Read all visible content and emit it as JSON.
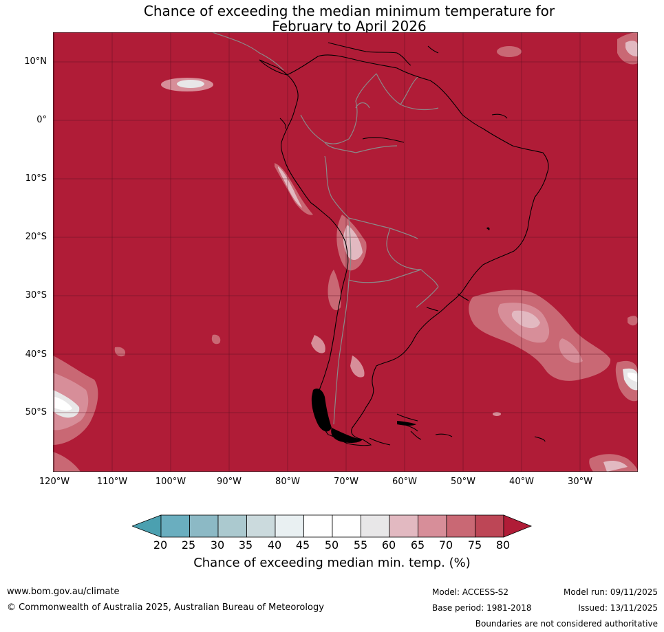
{
  "title": {
    "line1": "Chance of exceeding the median minimum temperature for",
    "line2": "February to April 2026"
  },
  "map": {
    "latitude_labels": [
      "10°N",
      "0°",
      "10°S",
      "20°S",
      "30°S",
      "40°S",
      "50°S"
    ],
    "longitude_labels": [
      "120°W",
      "110°W",
      "100°W",
      "90°W",
      "80°W",
      "70°W",
      "60°W",
      "50°W",
      "40°W",
      "30°W"
    ],
    "colors": {
      "ocean_fill": "#b01c37",
      "gridline": "#5a1020",
      "coastline": "#000000",
      "border": "#8a8a8a"
    }
  },
  "colorbar": {
    "tick_labels": [
      "20",
      "25",
      "30",
      "35",
      "40",
      "45",
      "50",
      "55",
      "60",
      "65",
      "70",
      "75",
      "80"
    ],
    "colors": [
      "#4ba0b0",
      "#6aaebf",
      "#8cb9c5",
      "#abc9cf",
      "#cbdadd",
      "#e9f0f2",
      "#ffffff",
      "#ffffff",
      "#e8e7e8",
      "#e2b9c1",
      "#d78e99",
      "#c96874",
      "#bd4656",
      "#b01c37"
    ],
    "label": "Chance of exceeding median min. temp. (%)"
  },
  "footer": {
    "website": "www.bom.gov.au/climate",
    "copyright": "© Commonwealth of Australia 2025, Australian Bureau of Meteorology",
    "model": "Model: ACCESS-S2",
    "base_period": "Base period: 1981-2018",
    "model_run": "Model run: 09/11/2025",
    "issued": "Issued: 13/11/2025",
    "disclaimer": "Boundaries are not considered authoritative"
  }
}
